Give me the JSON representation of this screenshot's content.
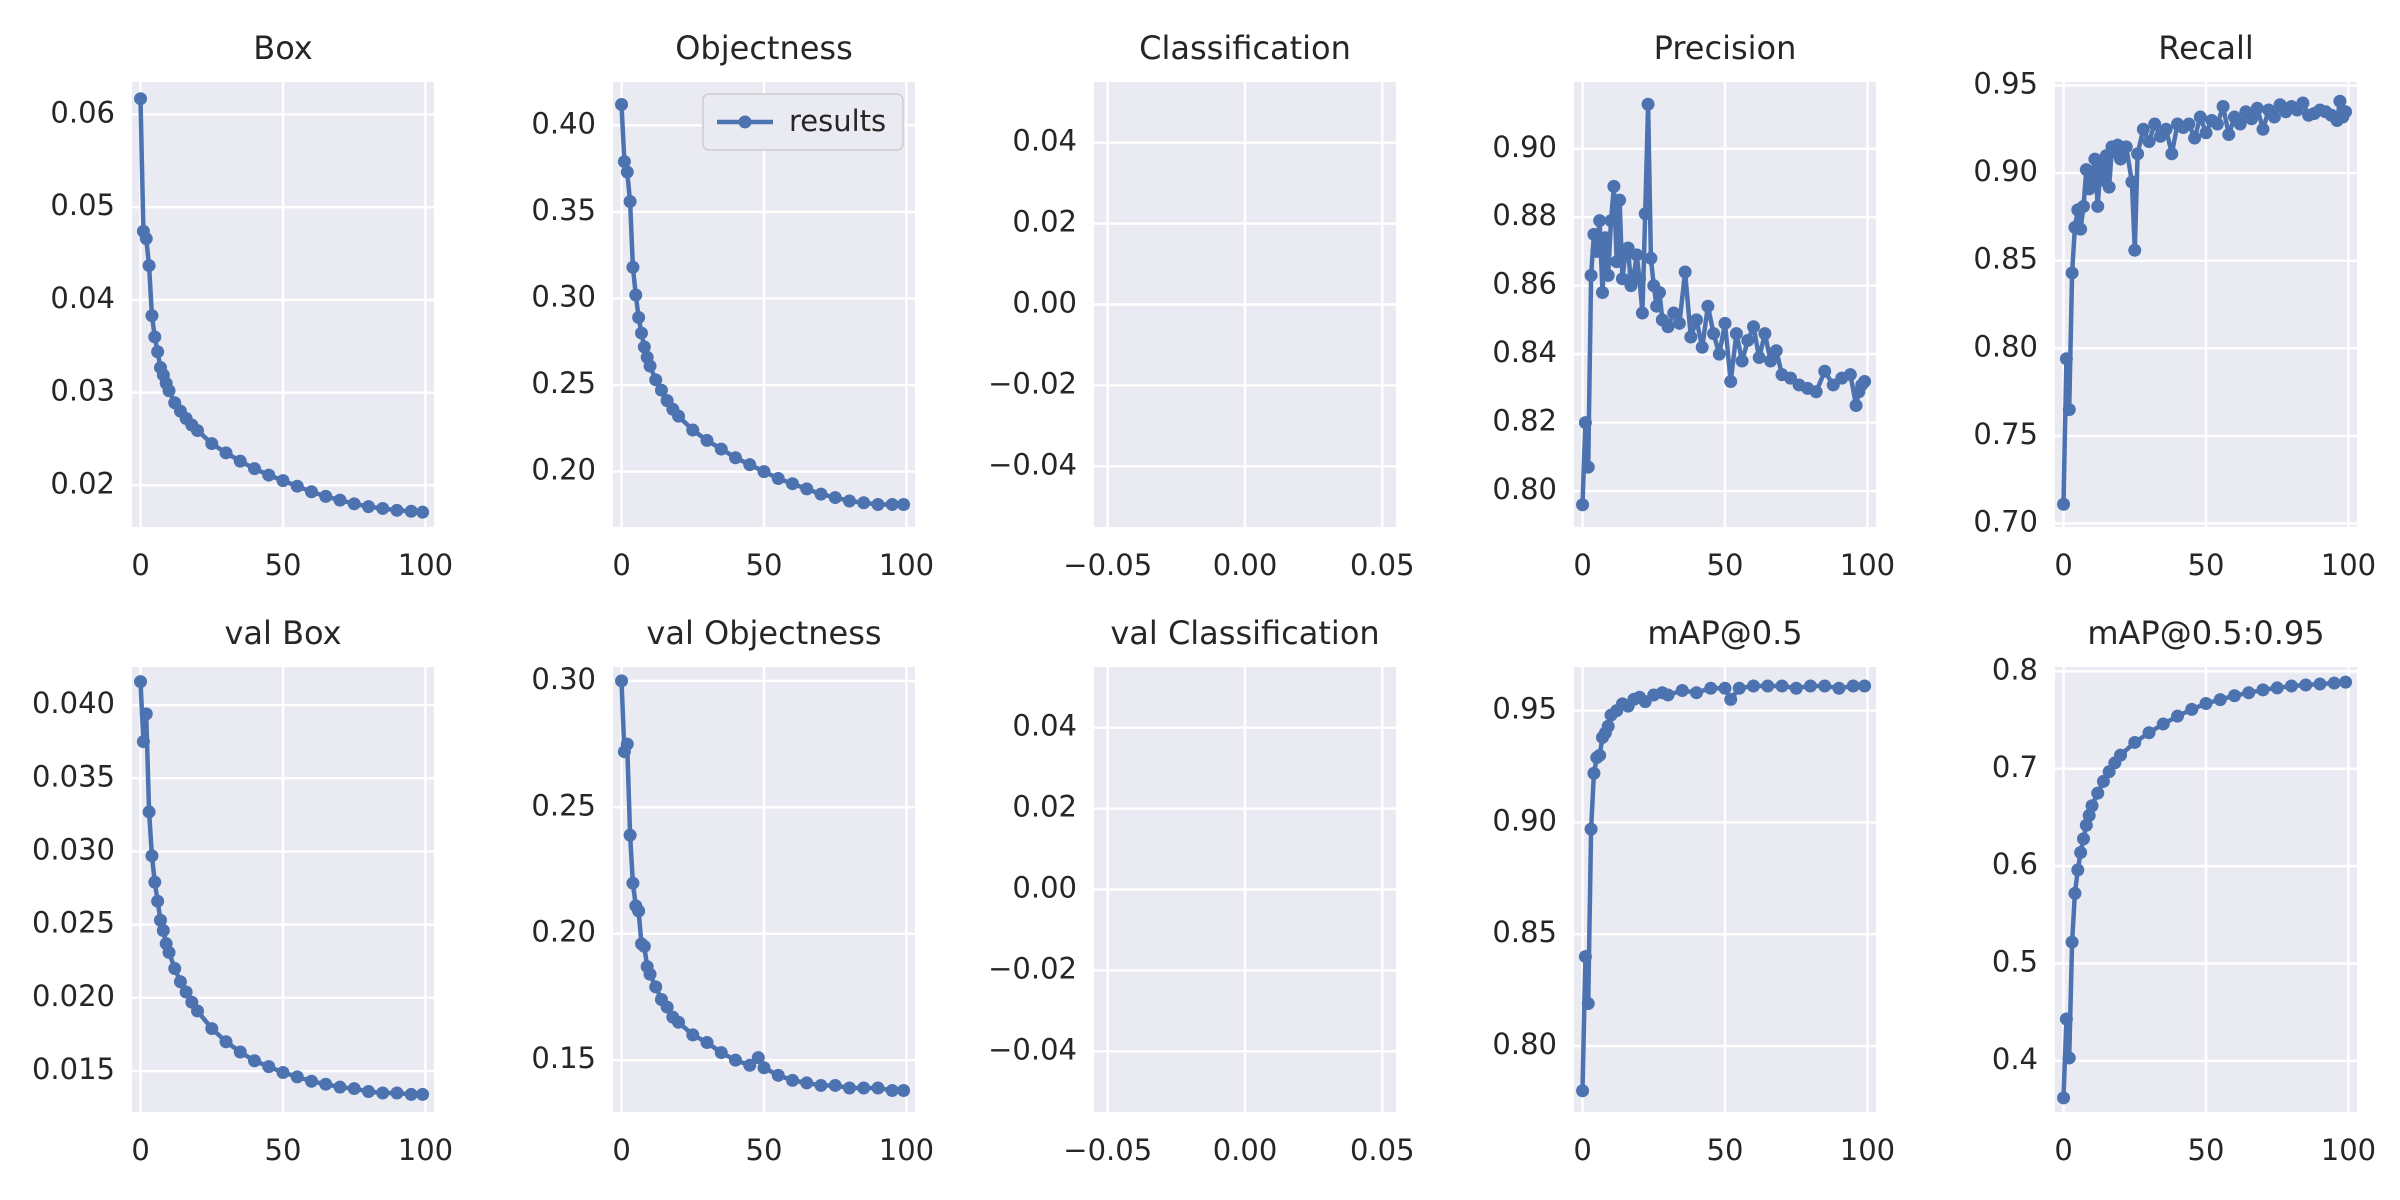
{
  "figure": {
    "background": "#ffffff"
  },
  "style": {
    "panel_bg": "#eaeaf2",
    "grid": "#ffffff",
    "series_color": "#4c72b0",
    "text_color": "#262626"
  },
  "chart_data": [
    {
      "type": "line",
      "title": "Box",
      "grid": true,
      "xlim": [
        -3,
        103
      ],
      "ylim": [
        0.0155,
        0.0635
      ],
      "xticks": [
        0,
        50,
        100
      ],
      "xtick_labels": [
        "0",
        "50",
        "100"
      ],
      "yticks": [
        0.02,
        0.03,
        0.04,
        0.05,
        0.06
      ],
      "ytick_labels": [
        "0.02",
        "0.03",
        "0.04",
        "0.05",
        "0.06"
      ],
      "series": [
        {
          "x": [
            0,
            1,
            2,
            3,
            4,
            5,
            6,
            7,
            8,
            9,
            10,
            12,
            14,
            16,
            18,
            20,
            25,
            30,
            35,
            40,
            45,
            50,
            55,
            60,
            65,
            70,
            75,
            80,
            85,
            90,
            95,
            99
          ],
          "y": [
            0.0617,
            0.0474,
            0.0466,
            0.0437,
            0.0383,
            0.036,
            0.0344,
            0.0327,
            0.0319,
            0.031,
            0.0302,
            0.0289,
            0.028,
            0.0272,
            0.0265,
            0.0259,
            0.0245,
            0.0235,
            0.0226,
            0.0218,
            0.0211,
            0.0205,
            0.0199,
            0.0193,
            0.0188,
            0.0184,
            0.018,
            0.0177,
            0.0175,
            0.0173,
            0.0172,
            0.0171
          ]
        }
      ]
    },
    {
      "type": "line",
      "title": "Objectness",
      "grid": true,
      "xlim": [
        -3,
        103
      ],
      "ylim": [
        0.168,
        0.425
      ],
      "xticks": [
        0,
        50,
        100
      ],
      "xtick_labels": [
        "0",
        "50",
        "100"
      ],
      "yticks": [
        0.2,
        0.25,
        0.3,
        0.35,
        0.4
      ],
      "ytick_labels": [
        "0.20",
        "0.25",
        "0.30",
        "0.35",
        "0.40"
      ],
      "legend": {
        "label": "results",
        "placement": "upper right"
      },
      "series": [
        {
          "x": [
            0,
            1,
            2,
            3,
            4,
            5,
            6,
            7,
            8,
            9,
            10,
            12,
            14,
            16,
            18,
            20,
            25,
            30,
            35,
            40,
            45,
            50,
            55,
            60,
            65,
            70,
            75,
            80,
            85,
            90,
            95,
            99
          ],
          "y": [
            0.412,
            0.379,
            0.373,
            0.356,
            0.318,
            0.302,
            0.289,
            0.28,
            0.272,
            0.266,
            0.261,
            0.253,
            0.247,
            0.241,
            0.236,
            0.232,
            0.224,
            0.218,
            0.213,
            0.208,
            0.204,
            0.2,
            0.196,
            0.193,
            0.19,
            0.187,
            0.185,
            0.183,
            0.182,
            0.181,
            0.181,
            0.181
          ]
        }
      ]
    },
    {
      "type": "line",
      "title": "Classification",
      "grid": true,
      "xlim": [
        -0.055,
        0.055
      ],
      "ylim": [
        -0.055,
        0.055
      ],
      "xticks": [
        -0.05,
        0,
        0.05
      ],
      "xtick_labels": [
        "−0.05",
        "0.00",
        "0.05"
      ],
      "yticks": [
        -0.04,
        -0.02,
        0,
        0.02,
        0.04
      ],
      "ytick_labels": [
        "−0.04",
        "−0.02",
        "0.00",
        "0.02",
        "0.04"
      ],
      "series": []
    },
    {
      "type": "line",
      "title": "Precision",
      "grid": true,
      "xlim": [
        -3,
        103
      ],
      "ylim": [
        0.7895,
        0.9195
      ],
      "xticks": [
        0,
        50,
        100
      ],
      "xtick_labels": [
        "0",
        "50",
        "100"
      ],
      "yticks": [
        0.8,
        0.82,
        0.84,
        0.86,
        0.88,
        0.9
      ],
      "ytick_labels": [
        "0.80",
        "0.82",
        "0.84",
        "0.86",
        "0.88",
        "0.90"
      ],
      "series": [
        {
          "x": [
            0,
            1,
            2,
            3,
            4,
            5,
            6,
            7,
            8,
            9,
            10,
            11,
            12,
            13,
            14,
            15,
            16,
            17,
            18,
            19,
            20,
            21,
            22,
            23,
            24,
            25,
            26,
            27,
            28,
            30,
            32,
            34,
            36,
            38,
            40,
            42,
            44,
            46,
            48,
            50,
            52,
            54,
            56,
            58,
            60,
            62,
            64,
            66,
            68,
            70,
            73,
            76,
            79,
            82,
            85,
            88,
            91,
            94,
            96,
            97,
            98,
            99
          ],
          "y": [
            0.796,
            0.82,
            0.807,
            0.863,
            0.875,
            0.87,
            0.879,
            0.858,
            0.874,
            0.863,
            0.879,
            0.889,
            0.867,
            0.885,
            0.862,
            0.869,
            0.871,
            0.86,
            0.863,
            0.869,
            0.862,
            0.852,
            0.881,
            0.913,
            0.868,
            0.86,
            0.854,
            0.858,
            0.85,
            0.848,
            0.852,
            0.849,
            0.864,
            0.845,
            0.85,
            0.842,
            0.854,
            0.846,
            0.84,
            0.849,
            0.832,
            0.846,
            0.838,
            0.844,
            0.848,
            0.839,
            0.846,
            0.838,
            0.841,
            0.834,
            0.833,
            0.831,
            0.83,
            0.829,
            0.835,
            0.831,
            0.833,
            0.834,
            0.825,
            0.829,
            0.831,
            0.832
          ]
        }
      ]
    },
    {
      "type": "line",
      "title": "Recall",
      "grid": true,
      "xlim": [
        -3,
        103
      ],
      "ylim": [
        0.698,
        0.952
      ],
      "xticks": [
        0,
        50,
        100
      ],
      "xtick_labels": [
        "0",
        "50",
        "100"
      ],
      "yticks": [
        0.7,
        0.75,
        0.8,
        0.85,
        0.9,
        0.95
      ],
      "ytick_labels": [
        "0.70",
        "0.75",
        "0.80",
        "0.85",
        "0.90",
        "0.95"
      ],
      "series": [
        {
          "x": [
            0,
            1,
            2,
            3,
            4,
            5,
            6,
            7,
            8,
            9,
            10,
            11,
            12,
            13,
            14,
            15,
            16,
            17,
            18,
            19,
            20,
            22,
            24,
            25,
            26,
            28,
            30,
            32,
            34,
            36,
            38,
            40,
            42,
            44,
            46,
            48,
            50,
            52,
            54,
            56,
            58,
            60,
            62,
            64,
            66,
            68,
            70,
            72,
            74,
            76,
            78,
            80,
            82,
            84,
            86,
            88,
            90,
            92,
            94,
            96,
            97,
            98,
            99
          ],
          "y": [
            0.711,
            0.794,
            0.765,
            0.843,
            0.869,
            0.879,
            0.868,
            0.881,
            0.902,
            0.891,
            0.896,
            0.908,
            0.881,
            0.905,
            0.896,
            0.91,
            0.892,
            0.915,
            0.912,
            0.916,
            0.908,
            0.915,
            0.895,
            0.856,
            0.911,
            0.925,
            0.918,
            0.928,
            0.921,
            0.925,
            0.911,
            0.928,
            0.926,
            0.928,
            0.92,
            0.932,
            0.923,
            0.93,
            0.928,
            0.938,
            0.922,
            0.932,
            0.928,
            0.935,
            0.931,
            0.937,
            0.925,
            0.936,
            0.932,
            0.939,
            0.935,
            0.938,
            0.936,
            0.94,
            0.933,
            0.934,
            0.936,
            0.935,
            0.933,
            0.93,
            0.941,
            0.932,
            0.935
          ]
        }
      ]
    },
    {
      "type": "line",
      "title": "val Box",
      "grid": true,
      "xlim": [
        -3,
        103
      ],
      "ylim": [
        0.0122,
        0.0426
      ],
      "xticks": [
        0,
        50,
        100
      ],
      "xtick_labels": [
        "0",
        "50",
        "100"
      ],
      "yticks": [
        0.015,
        0.02,
        0.025,
        0.03,
        0.035,
        0.04
      ],
      "ytick_labels": [
        "0.015",
        "0.020",
        "0.025",
        "0.030",
        "0.035",
        "0.040"
      ],
      "series": [
        {
          "x": [
            0,
            1,
            2,
            3,
            4,
            5,
            6,
            7,
            8,
            9,
            10,
            12,
            14,
            16,
            18,
            20,
            25,
            30,
            35,
            40,
            45,
            50,
            55,
            60,
            65,
            70,
            75,
            80,
            85,
            90,
            95,
            99
          ],
          "y": [
            0.0416,
            0.0375,
            0.0394,
            0.0327,
            0.0297,
            0.0279,
            0.0266,
            0.0253,
            0.0246,
            0.0237,
            0.0231,
            0.022,
            0.0211,
            0.0204,
            0.0197,
            0.0191,
            0.0179,
            0.017,
            0.0163,
            0.0157,
            0.0153,
            0.0149,
            0.0146,
            0.0143,
            0.0141,
            0.0139,
            0.0138,
            0.0136,
            0.0135,
            0.0135,
            0.0134,
            0.0134
          ]
        }
      ]
    },
    {
      "type": "line",
      "title": "val Objectness",
      "grid": true,
      "xlim": [
        -3,
        103
      ],
      "ylim": [
        0.1295,
        0.3055
      ],
      "xticks": [
        0,
        50,
        100
      ],
      "xtick_labels": [
        "0",
        "50",
        "100"
      ],
      "yticks": [
        0.15,
        0.2,
        0.25,
        0.3
      ],
      "ytick_labels": [
        "0.15",
        "0.20",
        "0.25",
        "0.30"
      ],
      "series": [
        {
          "x": [
            0,
            1,
            2,
            3,
            4,
            5,
            6,
            7,
            8,
            9,
            10,
            12,
            14,
            16,
            18,
            20,
            25,
            30,
            35,
            40,
            45,
            48,
            50,
            55,
            60,
            65,
            70,
            75,
            80,
            85,
            90,
            95,
            99
          ],
          "y": [
            0.3,
            0.272,
            0.275,
            0.239,
            0.22,
            0.211,
            0.209,
            0.196,
            0.195,
            0.187,
            0.184,
            0.179,
            0.174,
            0.171,
            0.167,
            0.165,
            0.16,
            0.157,
            0.153,
            0.15,
            0.148,
            0.151,
            0.147,
            0.144,
            0.142,
            0.141,
            0.14,
            0.14,
            0.139,
            0.139,
            0.139,
            0.138,
            0.138
          ]
        }
      ]
    },
    {
      "type": "line",
      "title": "val Classification",
      "grid": true,
      "xlim": [
        -0.055,
        0.055
      ],
      "ylim": [
        -0.055,
        0.055
      ],
      "xticks": [
        -0.05,
        0,
        0.05
      ],
      "xtick_labels": [
        "−0.05",
        "0.00",
        "0.05"
      ],
      "yticks": [
        -0.04,
        -0.02,
        0,
        0.02,
        0.04
      ],
      "ytick_labels": [
        "−0.04",
        "−0.02",
        "0.00",
        "0.02",
        "0.04"
      ],
      "series": []
    },
    {
      "type": "line",
      "title": "mAP@0.5",
      "grid": true,
      "xlim": [
        -3,
        103
      ],
      "ylim": [
        0.7705,
        0.9695
      ],
      "xticks": [
        0,
        50,
        100
      ],
      "xtick_labels": [
        "0",
        "50",
        "100"
      ],
      "yticks": [
        0.8,
        0.85,
        0.9,
        0.95
      ],
      "ytick_labels": [
        "0.80",
        "0.85",
        "0.90",
        "0.95"
      ],
      "series": [
        {
          "x": [
            0,
            1,
            2,
            3,
            4,
            5,
            6,
            7,
            8,
            9,
            10,
            12,
            14,
            16,
            18,
            20,
            22,
            25,
            28,
            30,
            35,
            40,
            45,
            50,
            52,
            55,
            60,
            65,
            70,
            75,
            80,
            85,
            90,
            95,
            99
          ],
          "y": [
            0.78,
            0.84,
            0.819,
            0.897,
            0.922,
            0.929,
            0.93,
            0.938,
            0.94,
            0.943,
            0.948,
            0.95,
            0.953,
            0.952,
            0.955,
            0.956,
            0.954,
            0.957,
            0.958,
            0.957,
            0.959,
            0.958,
            0.96,
            0.96,
            0.955,
            0.96,
            0.961,
            0.961,
            0.961,
            0.96,
            0.961,
            0.961,
            0.96,
            0.961,
            0.961
          ]
        }
      ]
    },
    {
      "type": "line",
      "title": "mAP@0.5:0.95",
      "grid": true,
      "xlim": [
        -3,
        103
      ],
      "ylim": [
        0.3475,
        0.8045
      ],
      "xticks": [
        0,
        50,
        100
      ],
      "xtick_labels": [
        "0",
        "50",
        "100"
      ],
      "yticks": [
        0.4,
        0.5,
        0.6,
        0.7,
        0.8
      ],
      "ytick_labels": [
        "0.4",
        "0.5",
        "0.6",
        "0.7",
        "0.8"
      ],
      "series": [
        {
          "x": [
            0,
            1,
            2,
            3,
            4,
            5,
            6,
            7,
            8,
            9,
            10,
            12,
            14,
            16,
            18,
            20,
            25,
            30,
            35,
            40,
            45,
            50,
            55,
            60,
            65,
            70,
            75,
            80,
            85,
            90,
            95,
            99
          ],
          "y": [
            0.362,
            0.443,
            0.403,
            0.522,
            0.572,
            0.596,
            0.614,
            0.628,
            0.642,
            0.652,
            0.662,
            0.675,
            0.687,
            0.697,
            0.706,
            0.714,
            0.727,
            0.737,
            0.746,
            0.754,
            0.761,
            0.767,
            0.771,
            0.775,
            0.778,
            0.781,
            0.783,
            0.785,
            0.786,
            0.787,
            0.788,
            0.789
          ]
        }
      ]
    }
  ]
}
